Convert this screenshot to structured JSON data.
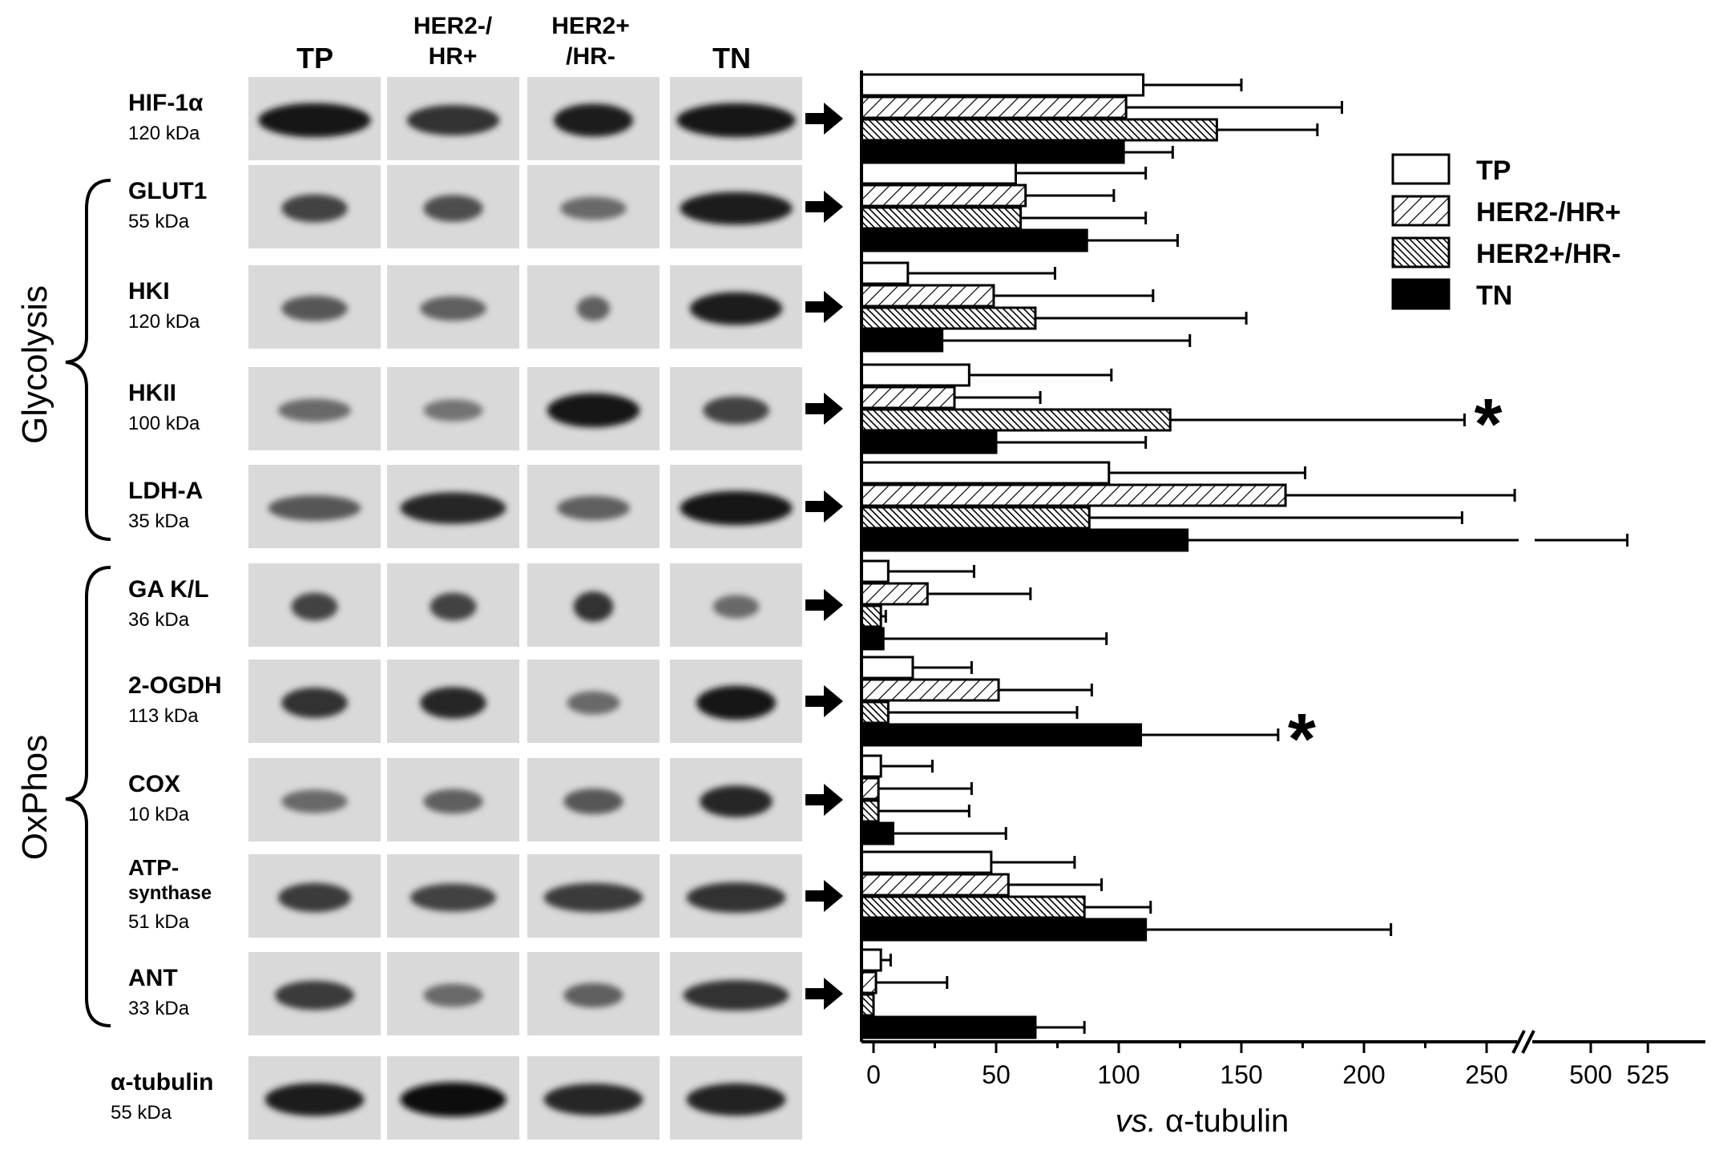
{
  "columns": [
    "TP",
    "HER2-/\nHR+",
    "HER2+\n/HR-",
    "TN"
  ],
  "groups": {
    "glycolysis": "Glycolysis",
    "oxphos": "OxPhos"
  },
  "proteins": [
    {
      "name": "HIF-1α",
      "kda": "120 kDa",
      "bands": [
        0.85,
        0.7,
        0.6,
        0.9
      ],
      "intensity": [
        0.95,
        0.8,
        0.9,
        0.95
      ]
    },
    {
      "name": "GLUT1",
      "kda": "55 kDa",
      "bands": [
        0.5,
        0.45,
        0.5,
        0.85
      ],
      "intensity": [
        0.7,
        0.65,
        0.5,
        0.9
      ]
    },
    {
      "name": "HKI",
      "kda": "120 kDa",
      "bands": [
        0.5,
        0.5,
        0.25,
        0.7
      ],
      "intensity": [
        0.6,
        0.55,
        0.55,
        0.9
      ]
    },
    {
      "name": "HKII",
      "kda": "100 kDa",
      "bands": [
        0.55,
        0.45,
        0.7,
        0.5
      ],
      "intensity": [
        0.5,
        0.45,
        0.95,
        0.7
      ]
    },
    {
      "name": "LDH-A",
      "kda": "35 kDa",
      "bands": [
        0.7,
        0.8,
        0.55,
        0.85
      ],
      "intensity": [
        0.6,
        0.85,
        0.55,
        0.95
      ]
    },
    {
      "name": "GA K/L",
      "kda": "36 kDa",
      "bands": [
        0.35,
        0.35,
        0.3,
        0.35
      ],
      "intensity": [
        0.7,
        0.7,
        0.8,
        0.5
      ]
    },
    {
      "name": "2-OGDH",
      "kda": "113 kDa",
      "bands": [
        0.5,
        0.5,
        0.4,
        0.6
      ],
      "intensity": [
        0.8,
        0.85,
        0.5,
        0.95
      ]
    },
    {
      "name": "COX",
      "kda": "10 kDa",
      "bands": [
        0.5,
        0.45,
        0.45,
        0.55
      ],
      "intensity": [
        0.5,
        0.55,
        0.6,
        0.85
      ]
    },
    {
      "name": "ATP-\nsynthase",
      "kda": "51 kDa",
      "bands": [
        0.55,
        0.65,
        0.75,
        0.75
      ],
      "intensity": [
        0.75,
        0.7,
        0.75,
        0.8
      ]
    },
    {
      "name": "ANT",
      "kda": "33 kDa",
      "bands": [
        0.6,
        0.45,
        0.45,
        0.8
      ],
      "intensity": [
        0.75,
        0.5,
        0.55,
        0.8
      ]
    }
  ],
  "loading_control": {
    "name": "α-tubulin",
    "kda": "55 kDa",
    "bands": [
      0.75,
      0.8,
      0.75,
      0.75
    ],
    "intensity": [
      0.9,
      0.97,
      0.85,
      0.88
    ]
  },
  "chart_data": {
    "type": "bar",
    "orientation": "horizontal",
    "categories": [
      "HIF-1α",
      "GLUT1",
      "HKI",
      "HKII",
      "LDH-A",
      "GA K/L",
      "2-OGDH",
      "COX",
      "ATP-synthase",
      "ANT"
    ],
    "series": [
      {
        "name": "TP",
        "values": [
          110,
          58,
          14,
          39,
          96,
          6,
          16,
          3,
          48,
          3
        ],
        "errors": [
          40,
          53,
          60,
          58,
          80,
          35,
          24,
          21,
          34,
          4
        ]
      },
      {
        "name": "HER2-/HR+",
        "values": [
          103,
          62,
          49,
          33,
          168,
          22,
          51,
          2,
          55,
          1
        ],
        "errors": [
          88,
          36,
          65,
          35,
          94,
          42,
          38,
          38,
          38,
          29
        ]
      },
      {
        "name": "HER2+/HR-",
        "values": [
          140,
          60,
          66,
          121,
          88,
          3,
          6,
          2,
          86,
          0
        ],
        "errors": [
          41,
          51,
          86,
          120,
          152,
          2,
          77,
          37,
          27,
          0
        ]
      },
      {
        "name": "TN",
        "values": [
          102,
          87,
          28,
          50,
          128,
          4,
          109,
          8,
          111,
          66
        ],
        "errors": [
          20,
          37,
          101,
          61,
          388,
          91,
          56,
          46,
          100,
          20
        ]
      }
    ],
    "significance": [
      {
        "category": "HKII",
        "series": "HER2+/HR-",
        "label": "*"
      },
      {
        "category": "2-OGDH",
        "series": "TN",
        "label": "*"
      }
    ],
    "xlabel": "vs. α-tubulin",
    "xticks": [
      "0",
      "50",
      "100",
      "150",
      "200",
      "250",
      "500",
      "525"
    ],
    "axis_break": [
      260,
      475
    ],
    "legend_position": "top-right",
    "grid": false
  },
  "colors": {
    "background": "#ffffff",
    "blot_bg": "#d9d9d9",
    "band": "#1a1a1a"
  }
}
